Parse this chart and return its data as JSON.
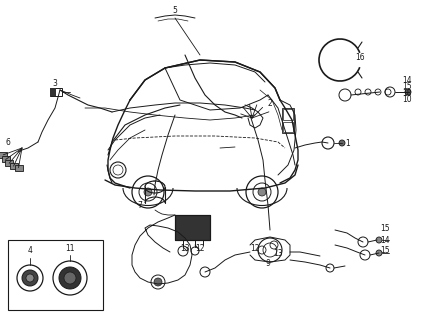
{
  "bg_color": "#ffffff",
  "line_color": "#1a1a1a",
  "gray_color": "#555555",
  "light_gray": "#aaaaaa",
  "figsize": [
    4.25,
    3.2
  ],
  "dpi": 100,
  "font_size": 5.5
}
